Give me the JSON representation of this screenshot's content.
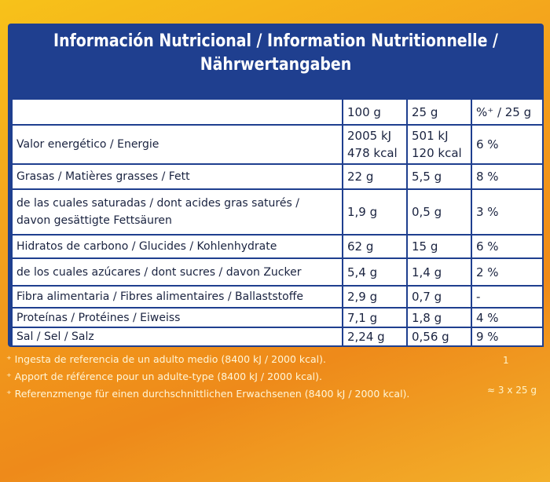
{
  "header": {
    "title": [
      "Información Nutricional / Information Nutritionnelle /",
      "Nährwertangaben"
    ]
  },
  "table": {
    "columns": [
      "100 g",
      "25 g",
      "%⁺ / 25 g"
    ],
    "rows": [
      [
        [
          "Valor energético / Energie"
        ],
        [
          "2005 kJ",
          "478 kcal"
        ],
        [
          "501 kJ",
          "120 kcal"
        ],
        [
          "6 %"
        ]
      ],
      [
        [
          "Grasas / Matières grasses / Fett"
        ],
        [
          "22 g"
        ],
        [
          "5,5 g"
        ],
        [
          "8 %"
        ]
      ],
      [
        [
          "de las cuales saturadas / dont acides gras saturés /",
          "davon gesättigte Fettsäuren"
        ],
        [
          "1,9 g"
        ],
        [
          "0,5 g"
        ],
        [
          "3 %"
        ]
      ],
      [
        [
          "Hidratos de carbono / Glucides / Kohlenhydrate"
        ],
        [
          "62 g"
        ],
        [
          "15 g"
        ],
        [
          "6 %"
        ]
      ],
      [
        [
          "de los cuales azúcares / dont sucres / davon Zucker"
        ],
        [
          "5,4 g"
        ],
        [
          "1,4 g"
        ],
        [
          "2 %"
        ]
      ],
      [
        [
          "Fibra alimentaria / Fibres alimentaires / Ballaststoffe"
        ],
        [
          "2,9 g"
        ],
        [
          "0,7 g"
        ],
        [
          "-"
        ]
      ],
      [
        [
          "Proteínas / Protéines / Eiweiss"
        ],
        [
          "7,1 g"
        ],
        [
          "1,8 g"
        ],
        [
          "4 %"
        ]
      ],
      [
        [
          "Sal / Sel / Salz"
        ],
        [
          "2,24 g"
        ],
        [
          "0,56 g"
        ],
        [
          "9 %"
        ]
      ]
    ]
  },
  "footnotes": [
    "⁺ Ingesta de referencia de un adulto medio (8400 kJ / 2000 kcal).",
    "⁺ Apport de référence pour un adulte-type (8400 kJ / 2000 kcal).",
    "⁺ Referenzmenge für einen durchschnittlichen Erwachsenen (8400 kJ / 2000 kcal)."
  ],
  "side": {
    "count": "1",
    "portion": "≈ 3 x 25 g"
  }
}
